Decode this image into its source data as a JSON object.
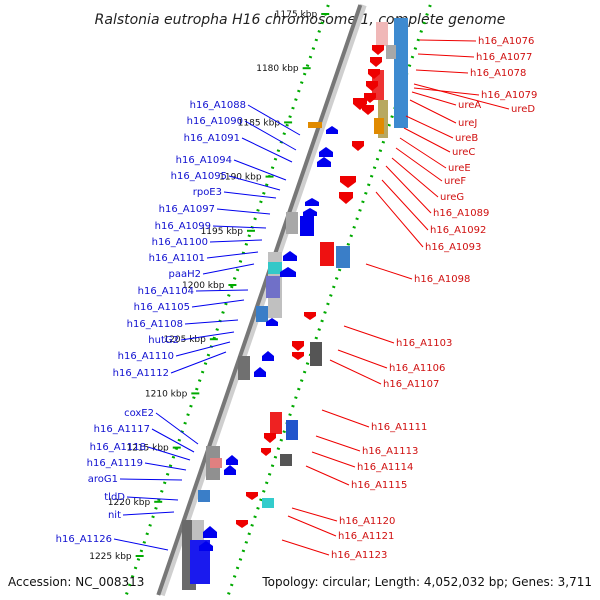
{
  "title": "Ralstonia eutropha H16 chromosome 1, complete genome",
  "accession": "Accession: NC_008313",
  "topology": "Topology: circular; Length: 4,052,032 bp; Genes: 3,711",
  "colors": {
    "forward": "#0000ee",
    "reverse": "#ee0000",
    "backbone": "#777777",
    "ruler": "#00aa00"
  },
  "ruler_ticks": [
    "1175 kbp",
    "1180 kbp",
    "1185 kbp",
    "1190 kbp",
    "1195 kbp",
    "1200 kbp",
    "1205 kbp",
    "1210 kbp",
    "1215 kbp",
    "1220 kbp",
    "1225 kbp"
  ],
  "forward_genes": [
    "h16_A1088",
    "h16_A1090",
    "h16_A1091",
    "h16_A1094",
    "h16_A1095",
    "rpoE3",
    "h16_A1097",
    "h16_A1099",
    "h16_A1100",
    "h16_A1101",
    "paaH2",
    "h16_A1104",
    "h16_A1105",
    "h16_A1108",
    "hutG2",
    "h16_A1110",
    "h16_A1112",
    "coxE2",
    "h16_A1117",
    "h16_A1118",
    "h16_A1119",
    "aroG1",
    "tldD",
    "nit",
    "h16_A1126"
  ],
  "reverse_genes": [
    "h16_A1076",
    "h16_A1077",
    "h16_A1078",
    "h16_A1079",
    "ureA",
    "ureD",
    "ureJ",
    "ureB",
    "ureC",
    "ureE",
    "ureF",
    "ureG",
    "h16_A1089",
    "h16_A1092",
    "h16_A1093",
    "h16_A1098",
    "h16_A1103",
    "h16_A1106",
    "h16_A1107",
    "h16_A1111",
    "h16_A1113",
    "h16_A1114",
    "h16_A1115",
    "h16_A1120",
    "h16_A1121",
    "h16_A1123"
  ]
}
